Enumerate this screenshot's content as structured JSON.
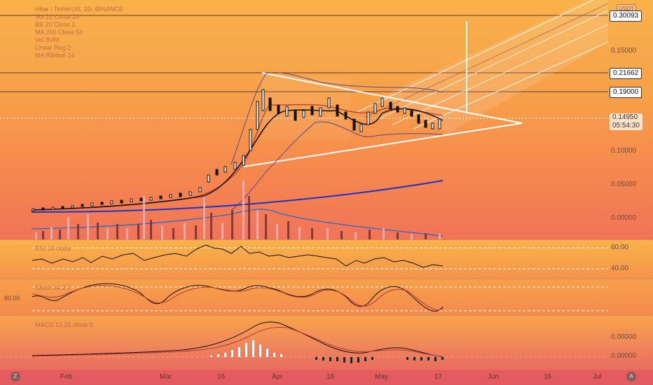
{
  "legend": {
    "lines": [
      "Hbar / TetherUS, 1D, BINANCE",
      "Vol 21 Close 20",
      "BB 20 Close 2",
      "MA 200 Close 50",
      "Vol 8VRI",
      "Linear Reg 2",
      "MA Ribbon 14"
    ]
  },
  "top_tag": "USDT",
  "price_axis": {
    "labels": [
      "0.15000",
      "0.10000",
      "0.05000",
      "0.00000"
    ],
    "tags": {
      "p1": "0.30093",
      "p2": "0.21662",
      "p3": "0.19000",
      "current": "0.14950",
      "countdown": "05:54:30"
    }
  },
  "rsi": {
    "label": "RSI 14 close",
    "upper": "60.00",
    "lower": "40.00"
  },
  "stoch": {
    "label": "Stoch 14 3 3",
    "left_level": "80.00"
  },
  "macd": {
    "label": "MACD 12 26 close 9",
    "upper": "0.00000",
    "lower": "0.00000"
  },
  "x_axis": {
    "labels": [
      "Feb",
      "Mar",
      "16",
      "Apr",
      "16",
      "May",
      "17",
      "Jun",
      "16",
      "Jul"
    ]
  },
  "buttons": {
    "left": "Z",
    "right": "A"
  },
  "colors": {
    "ribbon": "#ffffff",
    "ma200": "#1a33c8",
    "price": "#111111",
    "bb": "#5a4a8a"
  }
}
